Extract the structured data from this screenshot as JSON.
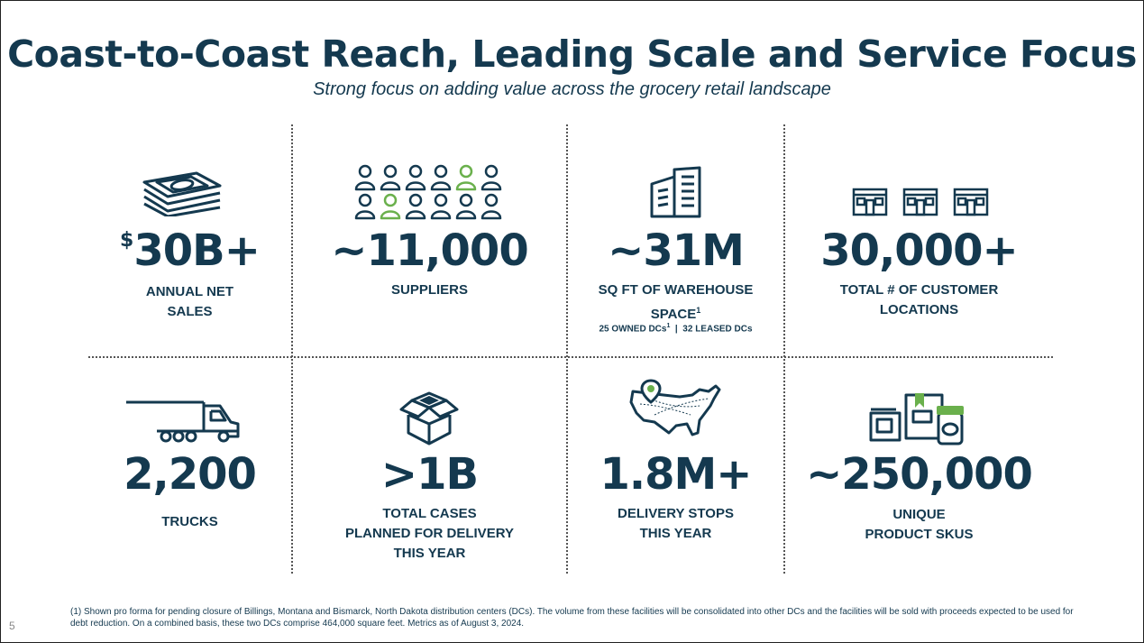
{
  "title": "Coast-to-Coast Reach, Leading Scale and Service Focus",
  "subtitle": "Strong focus on adding value across the grocery retail landscape",
  "colors": {
    "navy": "#14394f",
    "green": "#6ab04c"
  },
  "stats": [
    {
      "icon": "money-stack-icon",
      "prefix": "$",
      "value": "30B+",
      "label_lines": [
        "ANNUAL NET",
        "SALES"
      ]
    },
    {
      "icon": "people-grid-icon",
      "value": "~11,000",
      "label_lines": [
        "SUPPLIERS"
      ]
    },
    {
      "icon": "warehouse-building-icon",
      "value": "~31M",
      "label_lines": [
        "SQ FT OF WAREHOUSE",
        "SPACE"
      ],
      "label_sup": "1",
      "sublabel": {
        "owned": "25 OWNED DCs",
        "owned_sup": "1",
        "separator": "|",
        "leased": "32 LEASED DCs"
      }
    },
    {
      "icon": "storefronts-icon",
      "value": "30,000+",
      "label_lines": [
        "TOTAL # OF CUSTOMER",
        "LOCATIONS"
      ]
    },
    {
      "icon": "truck-icon",
      "value": "2,200",
      "label_lines": [
        "TRUCKS"
      ]
    },
    {
      "icon": "open-box-icon",
      "value": ">1B",
      "label_lines": [
        "TOTAL CASES",
        "PLANNED FOR DELIVERY",
        "THIS YEAR"
      ]
    },
    {
      "icon": "us-map-pin-icon",
      "value": "1.8M+",
      "label_lines": [
        "DELIVERY STOPS",
        "THIS YEAR"
      ]
    },
    {
      "icon": "products-icon",
      "value": "~250,000",
      "label_lines": [
        "UNIQUE",
        "PRODUCT SKUS"
      ]
    }
  ],
  "footnote": "(1) Shown pro forma for pending closure of  Billings, Montana and Bismarck, North Dakota distribution centers (DCs). The volume from these facilities will be consolidated into other DCs and the facilities will be sold with proceeds expected to be used for debt reduction. On a combined basis, these two DCs comprise 464,000 square feet. Metrics as of August 3, 2024.",
  "page_number": "5"
}
